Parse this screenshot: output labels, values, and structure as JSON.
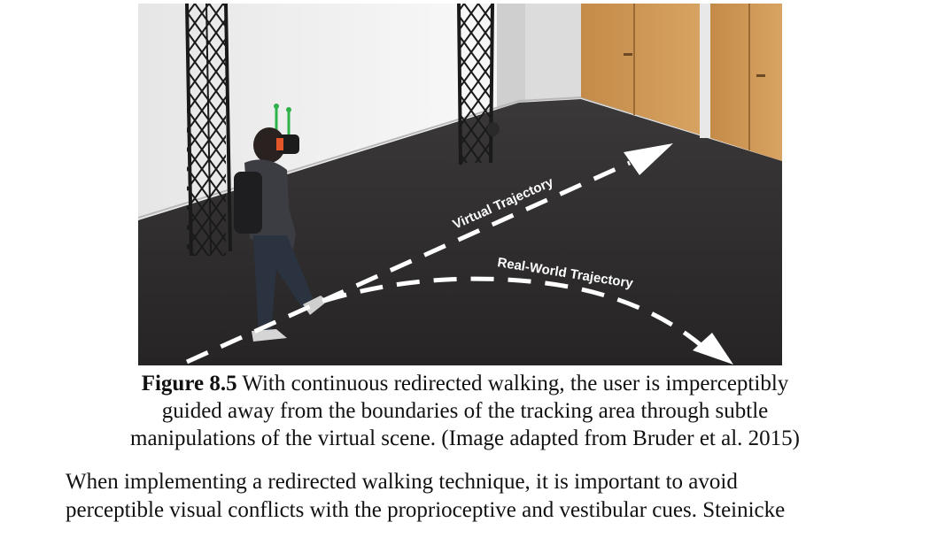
{
  "figure": {
    "photo_labels": {
      "virtual": "Virtual Trajectory",
      "real": "Real-World Trajectory"
    },
    "caption": {
      "number": "Figure 8.5",
      "line1": " With continuous redirected walking, the user is imperceptibly",
      "line2": "guided away from the boundaries of the tracking area through subtle",
      "line3": "manipulations of the virtual scene. (Image adapted from Bruder et al. 2015)"
    }
  },
  "body": {
    "lines": [
      "When implementing a redirected walking technique, it is important to avoid",
      "perceptible visual conflicts with the proprioceptive and vestibular cues. Steinicke"
    ]
  },
  "colors": {
    "floor": "#2e2c2c",
    "wall": "#efefef",
    "door": "#c9914f",
    "truss": "#1a1a1a",
    "arrow": "#ffffff"
  }
}
